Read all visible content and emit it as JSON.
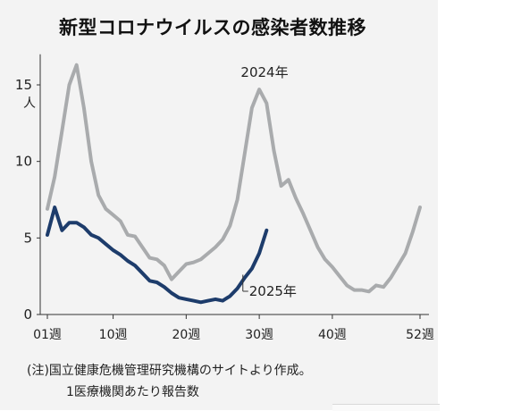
{
  "title": "新型コロナウイルスの感染者数推移",
  "footnotes": {
    "line1": "(注)国立健康危機管理研究機構のサイトより作成。",
    "line2": "1医療機関あたり報告数"
  },
  "chart_data": {
    "type": "line",
    "title": "新型コロナウイルスの感染者数推移",
    "xlabel": "",
    "ylabel": "人",
    "ylim": [
      0,
      17
    ],
    "xlim": [
      1,
      52
    ],
    "yticks": [
      {
        "value": 0,
        "label": "0"
      },
      {
        "value": 5,
        "label": "5"
      },
      {
        "value": 10,
        "label": "10"
      },
      {
        "value": 15,
        "label": "15"
      }
    ],
    "xticks": [
      {
        "value": 1,
        "label": "01週"
      },
      {
        "value": 10,
        "label": "10週"
      },
      {
        "value": 20,
        "label": "20週"
      },
      {
        "value": 30,
        "label": "30週"
      },
      {
        "value": 40,
        "label": "40週"
      },
      {
        "value": 52,
        "label": "52週"
      }
    ],
    "grid": false,
    "legend": "inline labels",
    "series": [
      {
        "name": "2024年",
        "color": "#a9abad",
        "x": [
          1,
          2,
          3,
          4,
          5,
          6,
          7,
          8,
          9,
          10,
          11,
          12,
          13,
          14,
          15,
          16,
          17,
          18,
          19,
          20,
          21,
          22,
          23,
          24,
          25,
          26,
          27,
          28,
          29,
          30,
          31,
          32,
          33,
          34,
          35,
          36,
          37,
          38,
          39,
          40,
          41,
          42,
          43,
          44,
          45,
          46,
          47,
          48,
          49,
          50,
          51,
          52
        ],
        "values": [
          6.9,
          9.0,
          12.0,
          15.0,
          16.3,
          13.5,
          10.0,
          7.8,
          6.9,
          6.5,
          6.1,
          5.2,
          5.1,
          4.4,
          3.7,
          3.6,
          3.2,
          2.3,
          2.8,
          3.3,
          3.4,
          3.6,
          4.0,
          4.4,
          4.9,
          5.8,
          7.5,
          10.5,
          13.5,
          14.7,
          13.8,
          10.7,
          8.4,
          8.8,
          7.6,
          6.6,
          5.5,
          4.4,
          3.6,
          3.1,
          2.5,
          1.9,
          1.6,
          1.6,
          1.5,
          1.9,
          1.8,
          2.4,
          3.2,
          4.0,
          5.4,
          7.0
        ]
      },
      {
        "name": "2025年",
        "color": "#1d3c6b",
        "x": [
          1,
          2,
          3,
          4,
          5,
          6,
          7,
          8,
          9,
          10,
          11,
          12,
          13,
          14,
          15,
          16,
          17,
          18,
          19,
          20,
          21,
          22,
          23,
          24,
          25,
          26,
          27,
          28,
          29,
          30,
          31
        ],
        "values": [
          5.2,
          7.0,
          5.5,
          6.0,
          6.0,
          5.7,
          5.2,
          5.0,
          4.6,
          4.2,
          3.9,
          3.5,
          3.2,
          2.7,
          2.2,
          2.1,
          1.8,
          1.4,
          1.1,
          1.0,
          0.9,
          0.8,
          0.9,
          1.0,
          0.9,
          1.2,
          1.7,
          2.4,
          3.0,
          4.0,
          5.5
        ]
      }
    ]
  }
}
